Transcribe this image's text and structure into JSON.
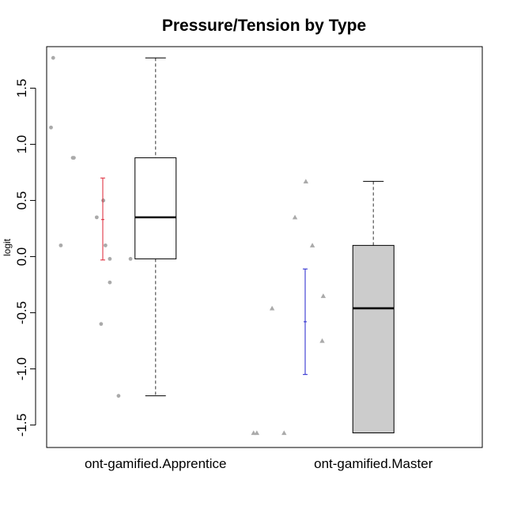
{
  "chart_data": {
    "type": "box",
    "title": "Pressure/Tension by Type",
    "xlabel": "",
    "ylabel": "logit",
    "ylim": [
      -1.7,
      1.87
    ],
    "yticks": [
      -1.5,
      -1.0,
      -0.5,
      0.0,
      0.5,
      1.0,
      1.5
    ],
    "ytick_labels": [
      "-1.5",
      "-1.0",
      "-0.5",
      "0.0",
      "0.5",
      "1.0",
      "1.5"
    ],
    "categories": [
      "ont-gamified.Apprentice",
      "ont-gamified.Master"
    ],
    "boxes": [
      {
        "category": "ont-gamified.Apprentice",
        "whisker_low": -1.24,
        "q1": -0.02,
        "median": 0.35,
        "q3": 0.88,
        "whisker_high": 1.77,
        "fill": "#ffffff"
      },
      {
        "category": "ont-gamified.Master",
        "whisker_low": -1.57,
        "q1": -1.57,
        "median": -0.46,
        "q3": 0.1,
        "whisker_high": 0.67,
        "fill": "#cccccc"
      }
    ],
    "points": [
      {
        "category": "ont-gamified.Apprentice",
        "marker": "circle",
        "color": "#aaaaaa",
        "x_offsets": [
          -0.94,
          -0.96,
          -0.76,
          -0.75,
          -0.54,
          -0.48,
          -0.48,
          -0.46,
          -0.87,
          -0.42,
          -0.23,
          -0.42,
          -0.5,
          -0.34
        ],
        "y": [
          1.77,
          1.15,
          0.88,
          0.88,
          0.35,
          0.5,
          0.5,
          0.1,
          0.1,
          -0.02,
          -0.02,
          -0.23,
          -0.6,
          -1.24
        ]
      },
      {
        "category": "ont-gamified.Master",
        "marker": "triangle",
        "color": "#aaaaaa",
        "x_offsets": [
          -0.62,
          -0.72,
          -0.56,
          -0.46,
          -0.93,
          -0.47,
          -1.1,
          -1.07,
          -0.82
        ],
        "y": [
          0.67,
          0.35,
          0.1,
          -0.35,
          -0.46,
          -0.75,
          -1.57,
          -1.57,
          -1.57
        ]
      }
    ],
    "error_bars": [
      {
        "category": "ont-gamified.Apprentice",
        "mean": 0.33,
        "low": -0.03,
        "high": 0.7,
        "color": "#dd2233"
      },
      {
        "category": "ont-gamified.Master",
        "mean": -0.58,
        "low": -1.05,
        "high": -0.11,
        "color": "#2222cc"
      }
    ],
    "grid": false,
    "legend": "none"
  }
}
